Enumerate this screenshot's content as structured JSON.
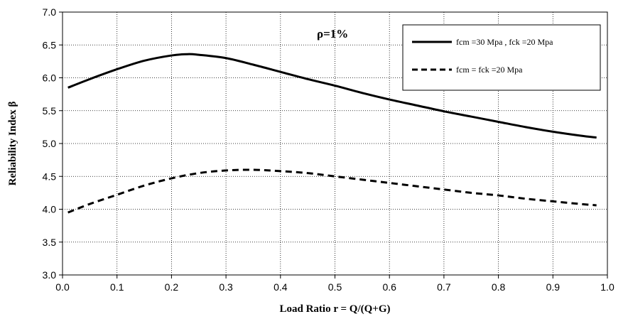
{
  "chart_data": {
    "type": "line",
    "title": "",
    "xlabel": "Load Ratio r = Q/(Q+G)",
    "ylabel": "Reliability Index β",
    "xlim": [
      0.0,
      1.0
    ],
    "ylim": [
      3.0,
      7.0
    ],
    "x_ticks": [
      "0.0",
      "0.1",
      "0.2",
      "0.3",
      "0.4",
      "0.5",
      "0.6",
      "0.7",
      "0.8",
      "0.9",
      "1.0"
    ],
    "y_ticks": [
      "3.0",
      "3.5",
      "4.0",
      "4.5",
      "5.0",
      "5.5",
      "6.0",
      "6.5",
      "7.0"
    ],
    "grid": "dotted",
    "legend_position": "top-right",
    "annotation": "ρ=1%",
    "series": [
      {
        "name": "fcm =30 Mpa , fck  =20 Mpa",
        "style": "solid",
        "color": "#000000",
        "x": [
          0.01,
          0.05,
          0.1,
          0.15,
          0.2,
          0.23,
          0.25,
          0.3,
          0.35,
          0.4,
          0.45,
          0.5,
          0.55,
          0.6,
          0.65,
          0.7,
          0.75,
          0.8,
          0.85,
          0.9,
          0.95,
          0.98
        ],
        "y": [
          5.85,
          5.98,
          6.13,
          6.26,
          6.34,
          6.36,
          6.35,
          6.3,
          6.2,
          6.09,
          5.98,
          5.88,
          5.77,
          5.67,
          5.58,
          5.49,
          5.41,
          5.33,
          5.25,
          5.18,
          5.12,
          5.09
        ]
      },
      {
        "name": "fcm = fck  =20 Mpa",
        "style": "dashed",
        "color": "#000000",
        "x": [
          0.01,
          0.05,
          0.1,
          0.15,
          0.2,
          0.25,
          0.3,
          0.35,
          0.4,
          0.45,
          0.5,
          0.55,
          0.6,
          0.65,
          0.7,
          0.75,
          0.8,
          0.85,
          0.9,
          0.95,
          0.98
        ],
        "y": [
          3.95,
          4.08,
          4.22,
          4.36,
          4.47,
          4.55,
          4.59,
          4.6,
          4.58,
          4.55,
          4.5,
          4.45,
          4.4,
          4.35,
          4.3,
          4.25,
          4.21,
          4.16,
          4.12,
          4.08,
          4.06
        ]
      }
    ]
  }
}
